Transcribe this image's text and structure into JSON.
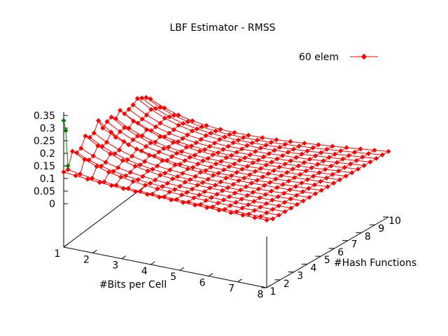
{
  "chart_data": {
    "type": "surface",
    "title": "LBF Estimator - RMSS",
    "xlabel": "#Bits per Cell",
    "ylabel": "#Hash Functions",
    "zlabel": "",
    "x_ticks": [
      "1",
      "2",
      "3",
      "4",
      "5",
      "6",
      "7",
      "8"
    ],
    "y_ticks": [
      "1",
      "2",
      "3",
      "4",
      "5",
      "6",
      "7",
      "8",
      "9",
      "10"
    ],
    "z_ticks": [
      "0",
      "0.05",
      "0.1",
      "0.15",
      "0.2",
      "0.25",
      "0.3",
      "0.35"
    ],
    "xlim": [
      1,
      8
    ],
    "ylim": [
      1,
      10
    ],
    "zlim": [
      0,
      0.35
    ],
    "legend_position": "top-right",
    "grid": false,
    "series": [
      {
        "name": "60 elem",
        "color": "#ff0000",
        "x_range": [
          1,
          8
        ],
        "y_range": [
          1,
          10
        ],
        "x_samples": 21,
        "y_samples": 18,
        "z_first_row": [
          0.14,
          0.16,
          0.24,
          0.22,
          0.23,
          0.28,
          0.26,
          0.27,
          0.32,
          0.27,
          0.29,
          0.3,
          0.28,
          0.31,
          0.28,
          0.29,
          0.3,
          0.32,
          0.31,
          0.3,
          0.28
        ],
        "z_edge_far": 0.11,
        "z_corner_near_x8_y1": 0.02
      }
    ],
    "accent_series": {
      "color": "#008000",
      "x": [
        1,
        1,
        1
      ],
      "y": [
        1,
        1.05,
        1.1
      ],
      "z": [
        0.33,
        0.29,
        0.15
      ]
    }
  }
}
